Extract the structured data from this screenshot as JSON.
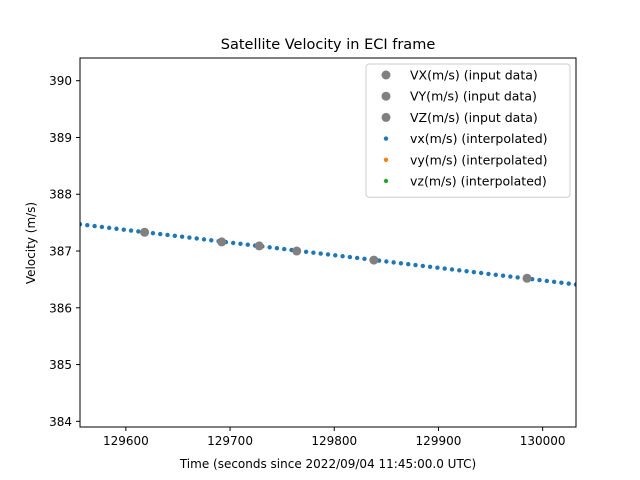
{
  "chart_data": {
    "type": "scatter",
    "title": "Satellite Velocity in ECI frame",
    "xlabel": "Time (seconds since 2022/09/04 11:45:00.0 UTC)",
    "ylabel": "Velocity (m/s)",
    "xlim": [
      129556,
      130032
    ],
    "ylim": [
      383.9,
      390.4
    ],
    "xticks": [
      129600,
      129700,
      129800,
      129900,
      130000
    ],
    "xtick_labels": [
      "129600",
      "129700",
      "129800",
      "129900",
      "130000"
    ],
    "yticks": [
      384,
      385,
      386,
      387,
      388,
      389,
      390
    ],
    "ytick_labels": [
      "384",
      "385",
      "386",
      "387",
      "388",
      "389",
      "390"
    ],
    "grid": false,
    "legend_position": "top-right",
    "legend": [
      {
        "label": "VX(m/s) (input data)",
        "color": "#808080",
        "marker": "large-dot"
      },
      {
        "label": "VY(m/s) (input data)",
        "color": "#808080",
        "marker": "large-dot"
      },
      {
        "label": "VZ(m/s) (input data)",
        "color": "#808080",
        "marker": "large-dot"
      },
      {
        "label": "vx(m/s) (interpolated)",
        "color": "#1f77b4",
        "marker": "small-dot"
      },
      {
        "label": "vy(m/s) (interpolated)",
        "color": "#ff7f0e",
        "marker": "small-dot"
      },
      {
        "label": "vz(m/s) (interpolated)",
        "color": "#2ca02c",
        "marker": "small-dot"
      }
    ],
    "series": [
      {
        "name": "VX(m/s) (input data)",
        "color": "#808080",
        "x": [
          129618,
          129692,
          129728,
          129764,
          129838,
          129985
        ],
        "y": [
          387.33,
          387.16,
          387.09,
          387.0,
          386.84,
          386.52
        ]
      },
      {
        "name": "vx(m/s) (interpolated)",
        "color": "#1f77b4",
        "x_start": 129556,
        "x_end": 130032,
        "x_step": 7,
        "y_start": 387.47,
        "y_end": 386.41
      }
    ]
  }
}
